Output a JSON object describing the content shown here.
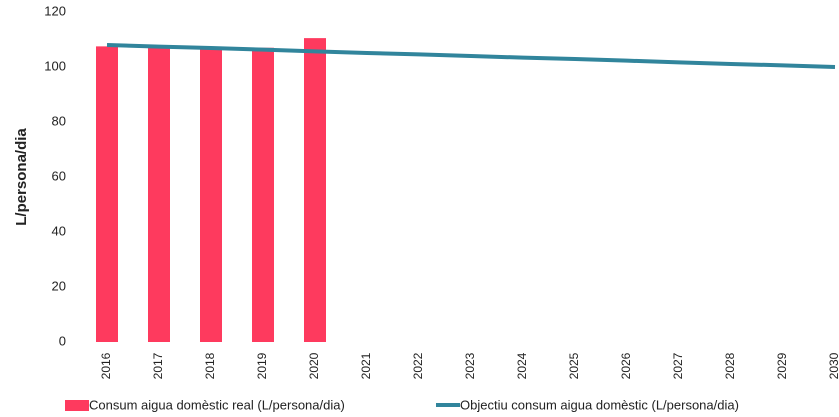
{
  "chart_data": {
    "type": "bar",
    "y_label": "L/persona/dia",
    "categories": [
      "2016",
      "2017",
      "2018",
      "2019",
      "2020",
      "2021",
      "2022",
      "2023",
      "2024",
      "2025",
      "2026",
      "2027",
      "2028",
      "2029",
      "2030"
    ],
    "series": [
      {
        "name": "Consum aigua domèstic real (L/persona/dia)",
        "type": "bar",
        "color": "#fe3a5e",
        "values": [
          107.5,
          107.5,
          106.5,
          107,
          110.5,
          null,
          null,
          null,
          null,
          null,
          null,
          null,
          null,
          null,
          null
        ]
      },
      {
        "name": "Objectiu consum aigua domèstic (L/persona/dia)",
        "type": "line",
        "color": "#31859c",
        "values": [
          108,
          107.4,
          106.9,
          106.3,
          105.7,
          105.1,
          104.6,
          104,
          103.4,
          102.9,
          102.3,
          101.7,
          101.1,
          100.6,
          100
        ]
      }
    ],
    "ylim": [
      0,
      120
    ],
    "yticks": [
      0,
      20,
      40,
      60,
      80,
      100,
      120
    ],
    "grid": false,
    "legend": "bottom"
  }
}
